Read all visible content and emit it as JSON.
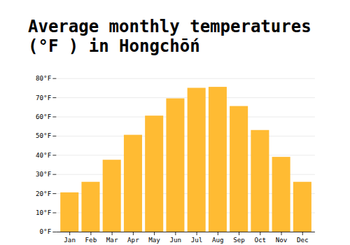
{
  "chart_data": {
    "type": "bar",
    "title": "Average monthly temperatures (°F ) in Hongchṓn",
    "categories": [
      "Jan",
      "Feb",
      "Mar",
      "Apr",
      "May",
      "Jun",
      "Jul",
      "Aug",
      "Sep",
      "Oct",
      "Nov",
      "Dec"
    ],
    "values": [
      20.5,
      26,
      37.5,
      50.5,
      60.5,
      69.5,
      75,
      75.5,
      65.5,
      53,
      39,
      26
    ],
    "color": "#FFBB33",
    "ylim": [
      0,
      80
    ],
    "yticks": [
      {
        "value": 0,
        "label": "0°F"
      },
      {
        "value": 10,
        "label": "10°F"
      },
      {
        "value": 20,
        "label": "20°F"
      },
      {
        "value": 30,
        "label": "30°F"
      },
      {
        "value": 40,
        "label": "40°F"
      },
      {
        "value": 50,
        "label": "50°F"
      },
      {
        "value": 60,
        "label": "60°F"
      },
      {
        "value": 70,
        "label": "70°F"
      },
      {
        "value": 80,
        "label": "80°F"
      }
    ],
    "grid": true
  }
}
